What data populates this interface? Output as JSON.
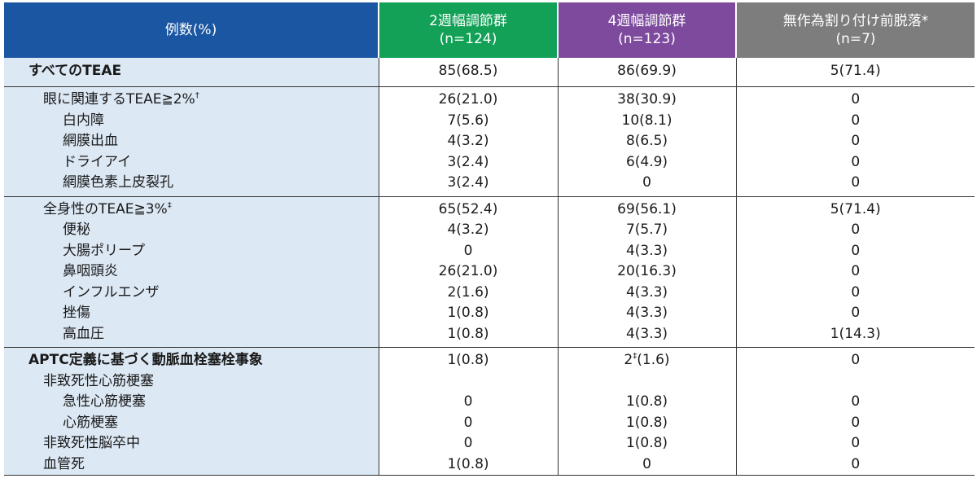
{
  "header": {
    "col0": "例数(%)",
    "col1_line1": "2週幅調節群",
    "col1_line2": "(n=124)",
    "col2_line1": "4週幅調節群",
    "col2_line2": "(n=123)",
    "col3_line1": "無作為割り付け前脱落*",
    "col3_line2": "(n=7)"
  },
  "rows": [
    {
      "label": "すべてのTEAE",
      "sup": "",
      "c1": "85(68.5)",
      "c2": "86(69.9)",
      "c3": "5(71.4)"
    },
    {
      "label": "眼に関連するTEAE≧2%",
      "sup": "†",
      "c1": "26(21.0)",
      "c2": "38(30.9)",
      "c3": "0"
    },
    {
      "label": "白内障",
      "sup": "",
      "c1": "7(5.6)",
      "c2": "10(8.1)",
      "c3": "0"
    },
    {
      "label": "網膜出血",
      "sup": "",
      "c1": "4(3.2)",
      "c2": "8(6.5)",
      "c3": "0"
    },
    {
      "label": "ドライアイ",
      "sup": "",
      "c1": "3(2.4)",
      "c2": "6(4.9)",
      "c3": "0"
    },
    {
      "label": "網膜色素上皮裂孔",
      "sup": "",
      "c1": "3(2.4)",
      "c2": "0",
      "c3": "0"
    },
    {
      "label": "全身性のTEAE≧3%",
      "sup": "‡",
      "c1": "65(52.4)",
      "c2": "69(56.1)",
      "c3": "5(71.4)"
    },
    {
      "label": "便秘",
      "sup": "",
      "c1": "4(3.2)",
      "c2": "7(5.7)",
      "c3": "0"
    },
    {
      "label": "大腸ポリープ",
      "sup": "",
      "c1": "0",
      "c2": "4(3.3)",
      "c3": "0"
    },
    {
      "label": "鼻咽頭炎",
      "sup": "",
      "c1": "26(21.0)",
      "c2": "20(16.3)",
      "c3": "0"
    },
    {
      "label": "インフルエンザ",
      "sup": "",
      "c1": "2(1.6)",
      "c2": "4(3.3)",
      "c3": "0"
    },
    {
      "label": "挫傷",
      "sup": "",
      "c1": "1(0.8)",
      "c2": "4(3.3)",
      "c3": "0"
    },
    {
      "label": "高血圧",
      "sup": "",
      "c1": "1(0.8)",
      "c2": "4(3.3)",
      "c3": "1(14.3)"
    },
    {
      "label": "APTC定義に基づく動脈血栓塞栓事象",
      "sup": "",
      "c1": "1(0.8)",
      "c2_main": "2",
      "c2_sup": "‡",
      "c2_rest": "(1.6)",
      "c3": "0"
    },
    {
      "label": "非致死性心筋梗塞",
      "sup": "",
      "c1": "",
      "c2": "",
      "c3": ""
    },
    {
      "label": "急性心筋梗塞",
      "sup": "",
      "c1": "0",
      "c2": "1(0.8)",
      "c3": "0"
    },
    {
      "label": "心筋梗塞",
      "sup": "",
      "c1": "0",
      "c2": "1(0.8)",
      "c3": "0"
    },
    {
      "label": "非致死性脳卒中",
      "sup": "",
      "c1": "0",
      "c2": "1(0.8)",
      "c3": "0"
    },
    {
      "label": "血管死",
      "sup": "",
      "c1": "1(0.8)",
      "c2": "0",
      "c3": "0"
    }
  ]
}
